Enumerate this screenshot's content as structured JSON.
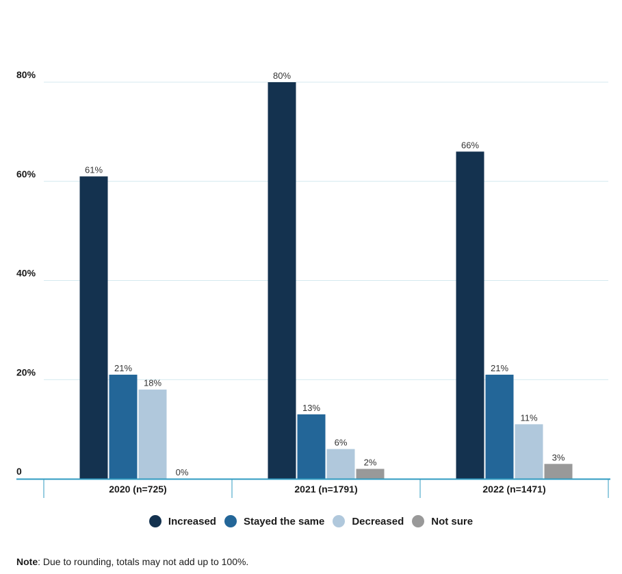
{
  "chart_data": {
    "type": "bar",
    "categories": [
      "2020 (n=725)",
      "2021 (n=1791)",
      "2022 (n=1471)"
    ],
    "series": [
      {
        "name": "Increased",
        "values": [
          61,
          80,
          66
        ],
        "color": "#14324f"
      },
      {
        "name": "Stayed the same",
        "values": [
          21,
          13,
          21
        ],
        "color": "#236698"
      },
      {
        "name": "Decreased",
        "values": [
          18,
          6,
          11
        ],
        "color": "#b0c8dc"
      },
      {
        "name": "Not sure",
        "values": [
          0,
          2,
          3
        ],
        "color": "#999999"
      }
    ],
    "value_labels": [
      [
        "61%",
        "80%",
        "66%"
      ],
      [
        "21%",
        "13%",
        "21%"
      ],
      [
        "18%",
        "6%",
        "11%"
      ],
      [
        "0%",
        "2%",
        "3%"
      ]
    ],
    "yticks": [
      {
        "value": 0,
        "label": "0"
      },
      {
        "value": 20,
        "label": "20%"
      },
      {
        "value": 40,
        "label": "40%"
      },
      {
        "value": 60,
        "label": "60%"
      },
      {
        "value": 80,
        "label": "80%"
      }
    ],
    "ylim": [
      0,
      80
    ],
    "grid": true,
    "legend_position": "bottom",
    "gridline_color": "#d4e9ef",
    "axis_color": "#2f9bc1"
  },
  "note": {
    "key": "Note",
    "text": ": Due to rounding, totals may not add up to 100%."
  }
}
